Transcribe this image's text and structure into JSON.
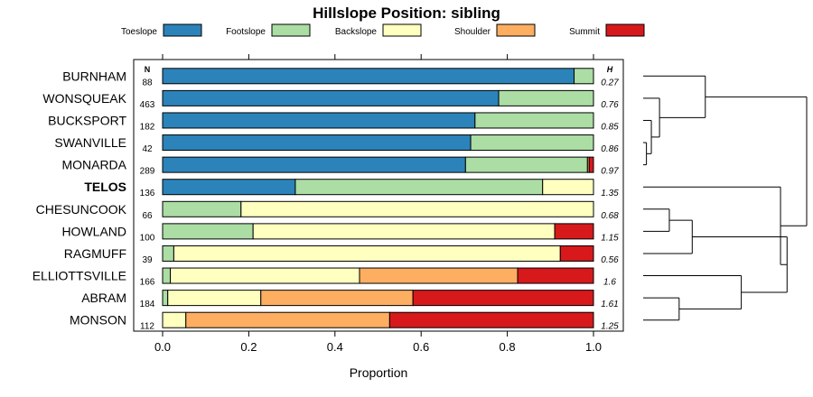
{
  "chart_data": {
    "type": "bar",
    "stacked": true,
    "orientation": "horizontal",
    "title": "Hillslope Position: sibling",
    "xlabel": "Proportion",
    "xlim": [
      0,
      1
    ],
    "xticks": [
      "0.0",
      "0.2",
      "0.4",
      "0.6",
      "0.8",
      "1.0"
    ],
    "legend": {
      "placement": "top",
      "entries": [
        "Toeslope",
        "Footslope",
        "Backslope",
        "Shoulder",
        "Summit"
      ]
    },
    "colors": [
      "#2b83ba",
      "#abdda4",
      "#ffffbf",
      "#fdae61",
      "#d7191c"
    ],
    "n_header": "N",
    "h_header": "H",
    "highlight": "TELOS",
    "categories": [
      "BURNHAM",
      "WONSQUEAK",
      "BUCKSPORT",
      "SWANVILLE",
      "MONARDA",
      "TELOS",
      "CHESUNCOOK",
      "HOWLAND",
      "RAGMUFF",
      "ELLIOTTSVILLE",
      "ABRAM",
      "MONSON"
    ],
    "n": [
      "88",
      "463",
      "182",
      "42",
      "289",
      "136",
      "66",
      "100",
      "39",
      "166",
      "184",
      "112"
    ],
    "h": [
      "0.27",
      "0.76",
      "0.85",
      "0.86",
      "0.97",
      "1.35",
      "0.68",
      "1.15",
      "0.56",
      "1.6",
      "1.61",
      "1.25"
    ],
    "series": [
      {
        "name": "Toeslope",
        "values": [
          0.955,
          0.78,
          0.725,
          0.715,
          0.703,
          0.308,
          0.0,
          0.0,
          0.0,
          0.0,
          0.0,
          0.0
        ]
      },
      {
        "name": "Footslope",
        "values": [
          0.045,
          0.22,
          0.275,
          0.285,
          0.283,
          0.574,
          0.182,
          0.21,
          0.026,
          0.018,
          0.012,
          0.0
        ]
      },
      {
        "name": "Backslope",
        "values": [
          0.0,
          0.0,
          0.0,
          0.0,
          0.0,
          0.118,
          0.818,
          0.7,
          0.897,
          0.439,
          0.216,
          0.054
        ]
      },
      {
        "name": "Shoulder",
        "values": [
          0.0,
          0.0,
          0.0,
          0.0,
          0.004,
          0.0,
          0.0,
          0.0,
          0.0,
          0.367,
          0.353,
          0.473
        ]
      },
      {
        "name": "Summit",
        "values": [
          0.0,
          0.0,
          0.0,
          0.0,
          0.01,
          0.0,
          0.0,
          0.09,
          0.077,
          0.176,
          0.419,
          0.473
        ]
      }
    ],
    "dendrogram": {
      "order": [
        "BURNHAM",
        "WONSQUEAK",
        "BUCKSPORT",
        "SWANVILLE",
        "MONARDA",
        "TELOS",
        "CHESUNCOOK",
        "HOWLAND",
        "RAGMUFF",
        "ELLIOTTSVILLE",
        "ABRAM",
        "MONSON"
      ],
      "merges": [
        {
          "a": 3,
          "b": 4,
          "height": 0.02
        },
        {
          "a": 2,
          "b": -1,
          "height": 0.05
        },
        {
          "a": 1,
          "b": -2,
          "height": 0.1
        },
        {
          "a": 0,
          "b": -3,
          "height": 0.38
        },
        {
          "a": 6,
          "b": 7,
          "height": 0.16
        },
        {
          "a": -5,
          "b": 8,
          "height": 0.3
        },
        {
          "a": 10,
          "b": 11,
          "height": 0.22
        },
        {
          "a": 9,
          "b": -7,
          "height": 0.6
        },
        {
          "a": -6,
          "b": -8,
          "height": 0.88
        },
        {
          "a": 5,
          "b": -9,
          "height": 0.84
        },
        {
          "a": -4,
          "b": -10,
          "height": 1.0
        }
      ]
    }
  }
}
